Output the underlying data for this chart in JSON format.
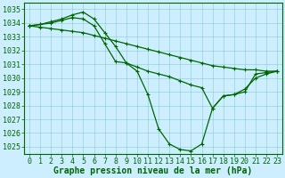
{
  "title": "Graphe pression niveau de la mer (hPa)",
  "xlabel_ticks": [
    0,
    1,
    2,
    3,
    4,
    5,
    6,
    7,
    8,
    9,
    10,
    11,
    12,
    13,
    14,
    15,
    16,
    17,
    18,
    19,
    20,
    21,
    22,
    23
  ],
  "ylim": [
    1024.5,
    1035.5
  ],
  "yticks": [
    1025,
    1026,
    1027,
    1028,
    1029,
    1030,
    1031,
    1032,
    1033,
    1034,
    1035
  ],
  "xlim": [
    -0.5,
    23.5
  ],
  "bg_color": "#cceeff",
  "grid_color": "#88cccc",
  "line_color": "#006600",
  "line1_x": [
    0,
    1,
    2,
    3,
    4,
    5,
    6,
    7,
    8,
    9,
    10,
    11,
    12,
    13,
    14,
    15,
    16,
    17,
    18,
    19,
    20,
    21,
    22,
    23
  ],
  "line1_y": [
    1033.8,
    1033.7,
    1033.6,
    1033.5,
    1033.4,
    1033.3,
    1033.1,
    1032.9,
    1032.7,
    1032.5,
    1032.3,
    1032.1,
    1031.9,
    1031.7,
    1031.5,
    1031.3,
    1031.1,
    1030.9,
    1030.8,
    1030.7,
    1030.6,
    1030.6,
    1030.5,
    1030.5
  ],
  "line2_x": [
    0,
    1,
    2,
    3,
    4,
    5,
    6,
    7,
    8,
    9,
    10,
    11,
    12,
    13,
    14,
    15,
    16,
    17,
    18,
    19,
    20,
    21,
    22,
    23
  ],
  "line2_y": [
    1033.8,
    1033.9,
    1034.1,
    1034.3,
    1034.6,
    1034.8,
    1034.3,
    1033.3,
    1032.3,
    1031.1,
    1030.5,
    1028.8,
    1026.3,
    1025.2,
    1024.8,
    1024.7,
    1025.2,
    1027.8,
    1028.7,
    1028.8,
    1029.0,
    1030.3,
    1030.4,
    1030.5
  ],
  "line3_x": [
    0,
    1,
    2,
    3,
    4,
    5,
    6,
    7,
    8,
    9,
    10,
    11,
    12,
    13,
    14,
    15,
    16,
    17,
    18,
    19,
    20,
    21,
    22,
    23
  ],
  "line3_y": [
    1033.8,
    1033.9,
    1034.0,
    1034.2,
    1034.4,
    1034.3,
    1033.8,
    1032.5,
    1031.2,
    1031.1,
    1030.8,
    1030.5,
    1030.3,
    1030.1,
    1029.8,
    1029.5,
    1029.3,
    1027.8,
    1028.7,
    1028.8,
    1029.2,
    1030.0,
    1030.3,
    1030.5
  ],
  "font_size_label": 7,
  "font_size_tick": 6
}
